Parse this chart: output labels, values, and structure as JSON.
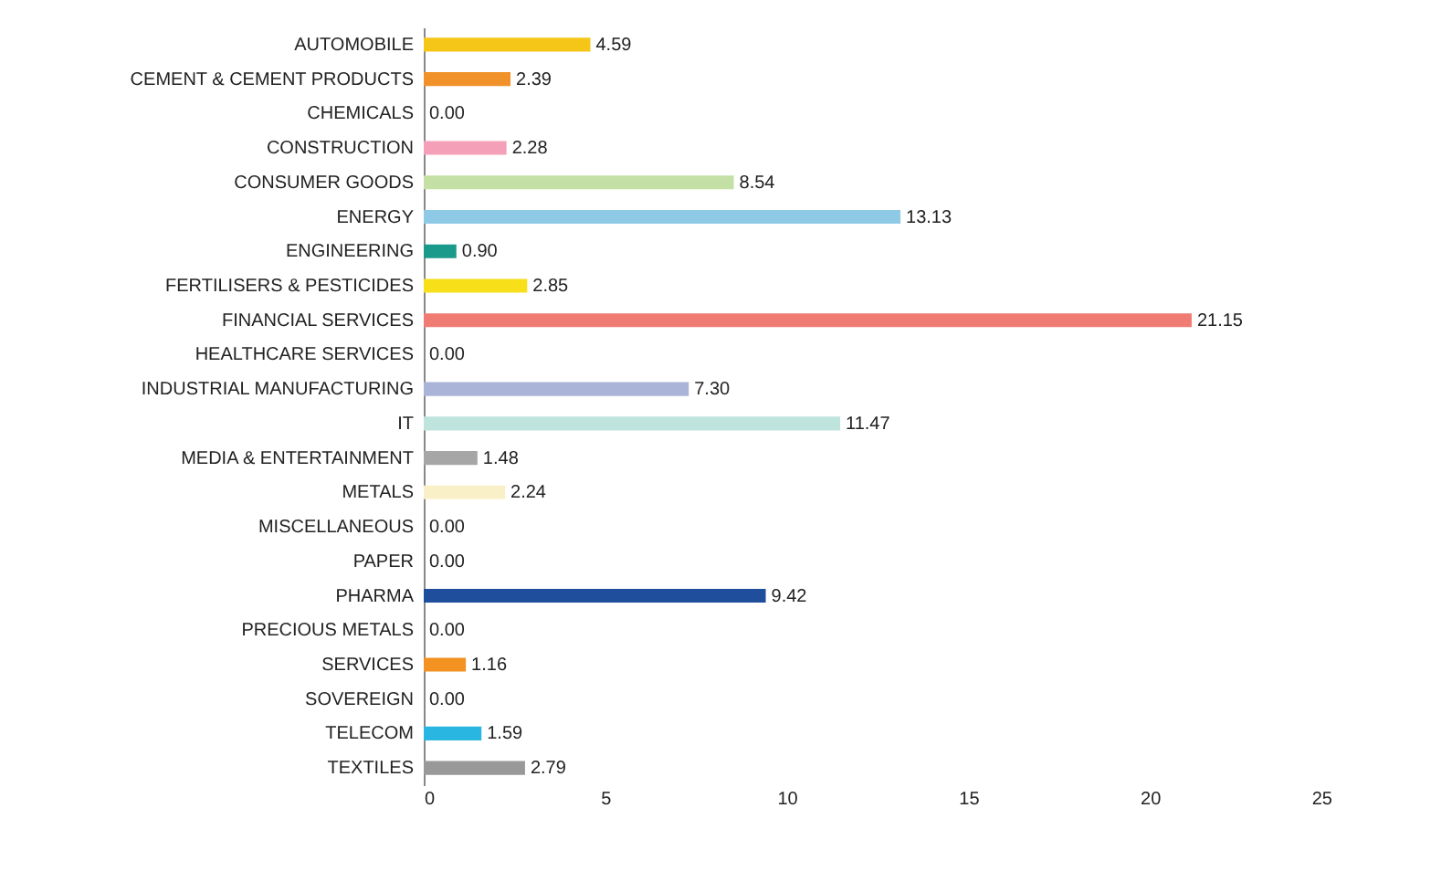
{
  "chart_data": {
    "type": "bar",
    "orientation": "horizontal",
    "categories": [
      "AUTOMOBILE",
      "CEMENT & CEMENT PRODUCTS",
      "CHEMICALS",
      "CONSTRUCTION",
      "CONSUMER GOODS",
      "ENERGY",
      "ENGINEERING",
      "FERTILISERS & PESTICIDES",
      "FINANCIAL SERVICES",
      "HEALTHCARE SERVICES",
      "INDUSTRIAL MANUFACTURING",
      "IT",
      "MEDIA & ENTERTAINMENT",
      "METALS",
      "MISCELLANEOUS",
      "PAPER",
      "PHARMA",
      "PRECIOUS METALS",
      "SERVICES",
      "SOVEREIGN",
      "TELECOM",
      "TEXTILES"
    ],
    "values": [
      4.59,
      2.39,
      0.0,
      2.28,
      8.54,
      13.13,
      0.9,
      2.85,
      21.15,
      0.0,
      7.3,
      11.47,
      1.48,
      2.24,
      0.0,
      0.0,
      9.42,
      0.0,
      1.16,
      0.0,
      1.59,
      2.79
    ],
    "value_labels": [
      "4.59",
      "2.39",
      "0.00",
      "2.28",
      "8.54",
      "13.13",
      "0.90",
      "2.85",
      "21.15",
      "0.00",
      "7.30",
      "11.47",
      "1.48",
      "2.24",
      "0.00",
      "0.00",
      "9.42",
      "0.00",
      "1.16",
      "0.00",
      "1.59",
      "2.79"
    ],
    "colors": [
      "#f5c518",
      "#f0912a",
      "#999999",
      "#f4a0b8",
      "#c5e0a5",
      "#8ecae6",
      "#1a9a8a",
      "#f7e01a",
      "#f07b72",
      "#999999",
      "#aab4d8",
      "#bfe3dd",
      "#a6a6a6",
      "#faf0c8",
      "#999999",
      "#999999",
      "#1f4e9c",
      "#999999",
      "#f39121",
      "#999999",
      "#29b6e0",
      "#999999"
    ],
    "xlim": [
      0,
      25
    ],
    "xticks": [
      0,
      5,
      10,
      15,
      20,
      25
    ],
    "grid": false
  }
}
